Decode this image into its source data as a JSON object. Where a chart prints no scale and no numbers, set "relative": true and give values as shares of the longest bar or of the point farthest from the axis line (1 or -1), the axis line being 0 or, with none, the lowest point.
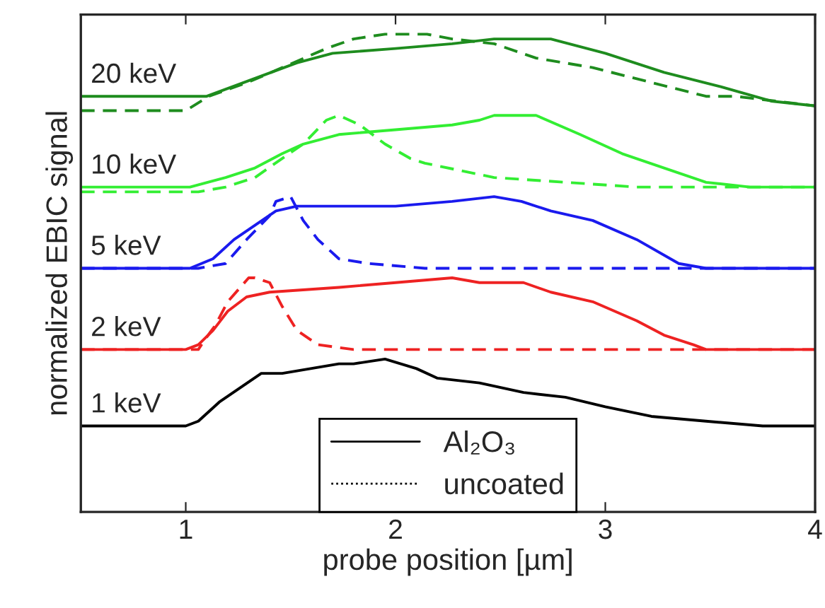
{
  "chart_data": {
    "type": "line",
    "relative": true,
    "xlabel": "probe position [µm]",
    "ylabel": "normalized EBIC signal",
    "xlim": [
      0.5,
      4
    ],
    "xticks": [
      1,
      2,
      3,
      4
    ],
    "grid": false,
    "legend": "bottom",
    "marker": "none",
    "series": [
      {
        "name": "20 keV",
        "color": "#1e8c1e",
        "line_style": "solid",
        "x": [
          0.5,
          1.1,
          1.53,
          1.7,
          2.0,
          2.27,
          2.47,
          2.74,
          3.0,
          3.28,
          3.55,
          3.79,
          4.0
        ],
        "values": [
          0.87,
          0.87,
          0.94,
          0.96,
          0.97,
          0.98,
          0.99,
          0.99,
          0.96,
          0.92,
          0.89,
          0.86,
          0.85
        ]
      },
      {
        "color": "#1e8c1e",
        "line_style": "dashed",
        "x": [
          0.5,
          1.0,
          1.11,
          1.3,
          1.46,
          1.67,
          1.8,
          1.95,
          2.15,
          2.27,
          2.47,
          2.67,
          2.94,
          3.21,
          3.48,
          3.62,
          4.0
        ],
        "values": [
          0.84,
          0.84,
          0.87,
          0.9,
          0.93,
          0.97,
          0.99,
          1.0,
          1.0,
          0.99,
          0.98,
          0.95,
          0.93,
          0.9,
          0.87,
          0.87,
          0.85
        ]
      },
      {
        "name": "10 keV",
        "color": "#33ee33",
        "line_style": "solid",
        "x": [
          0.5,
          1.02,
          1.19,
          1.33,
          1.46,
          1.56,
          1.73,
          2.0,
          2.27,
          2.4,
          2.47,
          2.67,
          2.88,
          3.08,
          3.28,
          3.48,
          3.69,
          4.0
        ],
        "values": [
          0.68,
          0.68,
          0.7,
          0.72,
          0.75,
          0.77,
          0.79,
          0.8,
          0.81,
          0.82,
          0.83,
          0.83,
          0.79,
          0.75,
          0.72,
          0.69,
          0.68,
          0.68
        ]
      },
      {
        "color": "#33ee33",
        "line_style": "dashed",
        "x": [
          0.5,
          1.06,
          1.19,
          1.33,
          1.46,
          1.56,
          1.67,
          1.73,
          1.83,
          1.95,
          2.07,
          2.14,
          2.47,
          2.81,
          3.15,
          4.0
        ],
        "values": [
          0.67,
          0.67,
          0.68,
          0.7,
          0.74,
          0.77,
          0.82,
          0.83,
          0.81,
          0.77,
          0.74,
          0.73,
          0.7,
          0.69,
          0.68,
          0.68
        ]
      },
      {
        "name": "5 keV",
        "color": "#1a1aee",
        "line_style": "solid",
        "x": [
          0.5,
          1.02,
          1.13,
          1.23,
          1.33,
          1.43,
          1.53,
          1.73,
          2.0,
          2.27,
          2.47,
          2.6,
          2.74,
          2.94,
          3.15,
          3.35,
          3.48,
          4.0
        ],
        "values": [
          0.51,
          0.51,
          0.53,
          0.57,
          0.6,
          0.63,
          0.64,
          0.64,
          0.64,
          0.65,
          0.66,
          0.65,
          0.63,
          0.61,
          0.57,
          0.52,
          0.51,
          0.51
        ]
      },
      {
        "color": "#1a1aee",
        "line_style": "dashed",
        "x": [
          0.5,
          1.06,
          1.19,
          1.29,
          1.4,
          1.43,
          1.5,
          1.56,
          1.63,
          1.73,
          1.87,
          2.14,
          2.81,
          4.0
        ],
        "values": [
          0.51,
          0.51,
          0.52,
          0.57,
          0.62,
          0.65,
          0.66,
          0.61,
          0.57,
          0.53,
          0.52,
          0.51,
          0.51,
          0.51
        ]
      },
      {
        "name": "2 keV",
        "color": "#ee2222",
        "line_style": "solid",
        "x": [
          0.5,
          1.0,
          1.06,
          1.13,
          1.2,
          1.29,
          1.4,
          1.73,
          2.0,
          2.27,
          2.4,
          2.61,
          2.74,
          2.94,
          3.15,
          3.28,
          3.42,
          3.48,
          4.0
        ],
        "values": [
          0.34,
          0.34,
          0.35,
          0.38,
          0.42,
          0.45,
          0.46,
          0.47,
          0.48,
          0.49,
          0.48,
          0.48,
          0.46,
          0.44,
          0.4,
          0.37,
          0.35,
          0.34,
          0.34
        ]
      },
      {
        "color": "#ee2222",
        "line_style": "dashed",
        "x": [
          0.5,
          1.06,
          1.09,
          1.14,
          1.2,
          1.3,
          1.33,
          1.4,
          1.46,
          1.53,
          1.63,
          1.8,
          4.0
        ],
        "values": [
          0.34,
          0.34,
          0.36,
          0.39,
          0.44,
          0.49,
          0.49,
          0.48,
          0.43,
          0.38,
          0.35,
          0.34,
          0.34
        ]
      },
      {
        "name": "1 keV",
        "color": "#000000",
        "line_style": "solid",
        "x": [
          0.5,
          1.0,
          1.06,
          1.16,
          1.26,
          1.36,
          1.46,
          1.73,
          1.8,
          1.95,
          2.1,
          2.2,
          2.4,
          2.61,
          2.81,
          3.0,
          3.22,
          3.48,
          3.75,
          4.0
        ],
        "values": [
          0.18,
          0.18,
          0.19,
          0.23,
          0.26,
          0.29,
          0.29,
          0.31,
          0.31,
          0.32,
          0.3,
          0.28,
          0.27,
          0.25,
          0.24,
          0.22,
          0.2,
          0.19,
          0.18,
          0.18
        ]
      },
      {
        "name": "Al₂O₃",
        "color": "#000000",
        "line_style": "solid"
      },
      {
        "name": "uncoated",
        "color": "#000000",
        "line_style": "dotted"
      }
    ]
  }
}
